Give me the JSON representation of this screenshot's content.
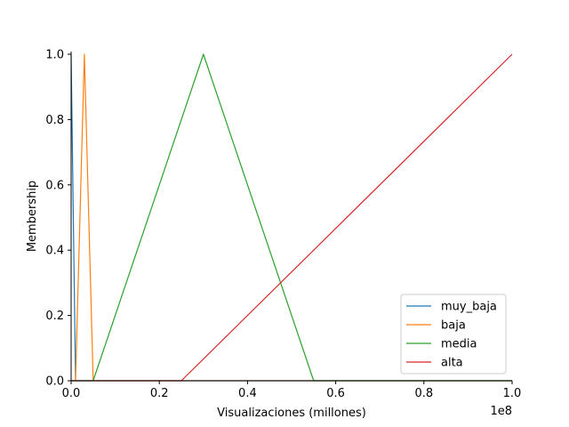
{
  "chart_data": {
    "type": "line",
    "title": "",
    "xlabel": "Visualizaciones (millones)",
    "ylabel": "Membership",
    "x_offset_label": "1e8",
    "xlim": [
      0,
      100000000
    ],
    "ylim": [
      0,
      1.0
    ],
    "xticks": [
      0,
      20000000,
      40000000,
      60000000,
      80000000,
      100000000
    ],
    "xtick_labels": [
      "0.0",
      "0.2",
      "0.4",
      "0.6",
      "0.8",
      "1.0"
    ],
    "yticks": [
      0.0,
      0.2,
      0.4,
      0.6,
      0.8,
      1.0
    ],
    "ytick_labels": [
      "0.0",
      "0.2",
      "0.4",
      "0.6",
      "0.8",
      "1.0"
    ],
    "grid": false,
    "legend_position": "lower-right",
    "series": [
      {
        "name": "muy_baja",
        "color": "#1f77b4",
        "x": [
          0,
          0,
          1000000,
          100000000
        ],
        "y": [
          1,
          1,
          0,
          0
        ]
      },
      {
        "name": "baja",
        "color": "#ff7f0e",
        "x": [
          0,
          1000000,
          3000000,
          5000000,
          100000000
        ],
        "y": [
          0,
          0,
          1,
          0,
          0
        ]
      },
      {
        "name": "media",
        "color": "#2ca02c",
        "x": [
          0,
          5000000,
          30000000,
          55000000,
          100000000
        ],
        "y": [
          0,
          0,
          1,
          0,
          0
        ]
      },
      {
        "name": "alta",
        "color": "#d62728",
        "x": [
          0,
          25000000,
          100000000
        ],
        "y": [
          0,
          0,
          1
        ]
      }
    ]
  }
}
